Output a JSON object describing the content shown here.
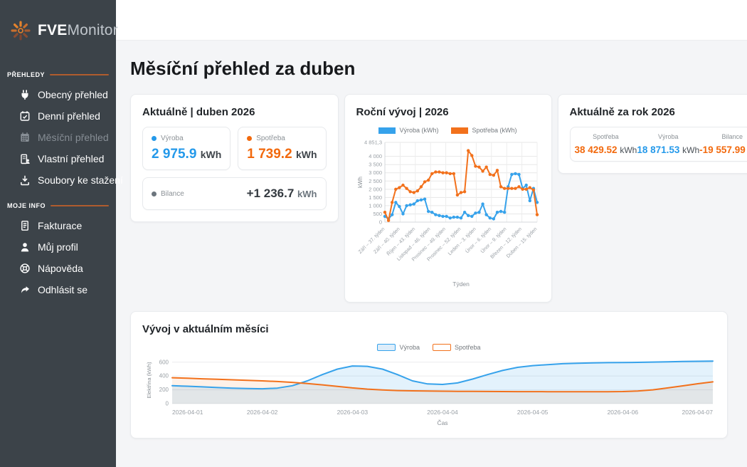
{
  "brand": {
    "bold": "FVE",
    "light": "Monitor"
  },
  "sidebar": {
    "sections": [
      {
        "label": "PŘEHLEDY",
        "items": [
          {
            "label": "Obecný přehled"
          },
          {
            "label": "Denní přehled"
          },
          {
            "label": "Měsíční přehled"
          },
          {
            "label": "Vlastní přehled"
          },
          {
            "label": "Soubory ke stažení"
          }
        ]
      },
      {
        "label": "MOJE INFO",
        "items": [
          {
            "label": "Fakturace"
          },
          {
            "label": "Můj profil"
          },
          {
            "label": "Nápověda"
          },
          {
            "label": "Odhlásit se"
          }
        ]
      }
    ]
  },
  "page": {
    "title": "Měsíční přehled za duben"
  },
  "colors": {
    "accent_blue": "#2499ea",
    "accent_orange": "#f2690d",
    "sidebar_bg": "#3c4349",
    "divider_orange": "#b05c2e",
    "balance_dark": "#343a40",
    "dot_gray": "#6c757d"
  },
  "cards": {
    "current_month": {
      "title": "Aktuálně | duben 2026",
      "tiles": [
        {
          "label": "Výroba",
          "value": "2 975.9",
          "unit": "kWh",
          "color": "#2499ea",
          "dot": "#2499ea"
        },
        {
          "label": "Spotřeba",
          "value": "1 739.2",
          "unit": "kWh",
          "color": "#f2690d",
          "dot": "#f2690d"
        },
        {
          "label": "Bilance",
          "value": "+1 236.7",
          "unit": "kWh",
          "color": "#343a40",
          "dot": "#6c757d"
        }
      ]
    },
    "year_chart": {
      "title": "Roční vývoj | 2026"
    },
    "current_year": {
      "title": "Aktuálně za rok 2026",
      "stats": [
        {
          "label": "Spotřeba",
          "value": "38 429.52",
          "unit": "kWh",
          "color": "#f2690d"
        },
        {
          "label": "Výroba",
          "value": "18 871.53",
          "unit": "kWh",
          "color": "#2499ea"
        },
        {
          "label": "Bilance",
          "value": "-19 557.99",
          "unit": "kWh",
          "color": "#f2690d"
        }
      ]
    },
    "month_chart": {
      "title": "Vývoj v aktuálním měsíci"
    }
  },
  "chart_data": [
    {
      "id": "year",
      "type": "line",
      "title": "Roční vývoj | 2026",
      "xlabel": "Týden",
      "ylabel": "kWh",
      "ylim": [
        0,
        4851.3
      ],
      "grid": true,
      "legend_position": "top",
      "ytick_values": [
        4851.3,
        4000,
        3500,
        3000,
        2500,
        2000,
        1500,
        1000,
        500,
        0
      ],
      "ytick_labels": [
        "4 851,3",
        "4 000",
        "3 500",
        "3 000",
        "2 500",
        "2 000",
        "1 500",
        "1 000",
        "500",
        "0"
      ],
      "xtick_labels": [
        "Září – 37. týden",
        "Září – 40. týden",
        "Říjen – 43. týden",
        "Listopad – 46. týden",
        "Prosinec – 49. týden",
        "Prosinec – 52. týden",
        "Leden – 3. týden",
        "Únor – 6. týden",
        "Únor – 9. týden",
        "Březen – 12. týden",
        "Duben – 15. týden"
      ],
      "series": [
        {
          "name": "Výroba (kWh)",
          "color": "#36a2eb",
          "values": [
            350,
            200,
            450,
            1200,
            950,
            500,
            1000,
            1050,
            1100,
            1300,
            1350,
            1400,
            650,
            600,
            450,
            400,
            350,
            350,
            250,
            300,
            300,
            250,
            600,
            400,
            350,
            550,
            600,
            1100,
            450,
            250,
            200,
            600,
            650,
            600,
            2150,
            2900,
            2950,
            2900,
            2050,
            2250,
            1300,
            2050,
            1200
          ]
        },
        {
          "name": "Spotřeba (kWh)",
          "color": "#f2711c",
          "values": [
            600,
            100,
            1200,
            2000,
            2100,
            2250,
            2050,
            1850,
            1800,
            1900,
            2150,
            2450,
            2550,
            2950,
            3050,
            3050,
            3000,
            3000,
            2950,
            2950,
            1650,
            1800,
            1850,
            4350,
            4050,
            3400,
            3350,
            3100,
            3350,
            2900,
            2850,
            3150,
            2150,
            2050,
            2050,
            2050,
            2050,
            2150,
            2000,
            2000,
            2100,
            1950,
            450
          ]
        }
      ]
    },
    {
      "id": "month",
      "type": "area",
      "title": "Vývoj v aktuálním měsíci",
      "xlabel": "Čas",
      "ylabel": "Elektřina (kWh)",
      "ylim": [
        0,
        680
      ],
      "grid": true,
      "legend_position": "top",
      "ytick_values": [
        600,
        400,
        200,
        0
      ],
      "ytick_labels": [
        "600",
        "400",
        "200",
        "0"
      ],
      "xtick_labels": [
        "2026-04-01",
        "2026-04-02",
        "2026-04-03",
        "2026-04-04",
        "2026-04-05",
        "2026-04-06",
        "2026-04-07"
      ],
      "series": [
        {
          "name": "Výroba",
          "color": "#36a2eb",
          "fill": "rgba(54,162,235,0.14)",
          "legend_fill": "#ddedfa",
          "values": [
            260,
            252,
            243,
            233,
            224,
            218,
            215,
            225,
            260,
            330,
            420,
            500,
            545,
            540,
            500,
            420,
            330,
            285,
            278,
            300,
            355,
            420,
            480,
            525,
            550,
            565,
            578,
            585,
            590,
            593,
            595,
            598,
            602,
            606,
            610,
            613,
            615
          ]
        },
        {
          "name": "Spotřeba",
          "color": "#f2711c",
          "fill": "rgba(242,113,28,0.10)",
          "legend_fill": "#ffffff",
          "values": [
            375,
            368,
            360,
            352,
            345,
            338,
            330,
            320,
            308,
            292,
            272,
            250,
            228,
            210,
            198,
            190,
            185,
            182,
            180,
            178,
            177,
            176,
            175,
            174,
            174,
            173,
            173,
            172,
            172,
            173,
            175,
            182,
            200,
            228,
            258,
            288,
            315
          ]
        }
      ]
    }
  ]
}
